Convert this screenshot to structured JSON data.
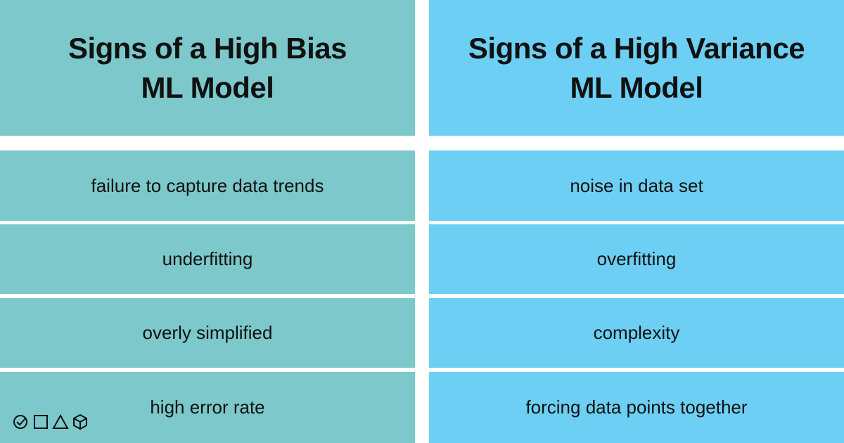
{
  "table": {
    "columns": [
      {
        "title": [
          "Signs of a High Bias",
          "ML Model"
        ],
        "color": "#7cc8ca",
        "rows": [
          "failure to capture data trends",
          "underfitting",
          "overly simplified",
          "high error rate"
        ]
      },
      {
        "title": [
          "Signs of a High Variance",
          "ML Model"
        ],
        "color": "#6dcff4",
        "rows": [
          "noise in data set",
          "overfitting",
          "complexity",
          "forcing data points together"
        ]
      }
    ]
  }
}
